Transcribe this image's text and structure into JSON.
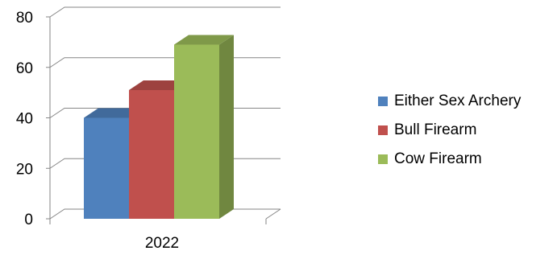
{
  "chart_data": {
    "type": "bar",
    "categories": [
      "2022"
    ],
    "series": [
      {
        "name": "Either Sex Archery",
        "values": [
          40
        ],
        "color": "#4F81BD"
      },
      {
        "name": "Bull Firearm",
        "values": [
          51
        ],
        "color": "#C0504D"
      },
      {
        "name": "Cow Firearm",
        "values": [
          69
        ],
        "color": "#9BBB59"
      }
    ],
    "ylim": [
      0,
      80
    ],
    "yticks": [
      "0",
      "20",
      "40",
      "60",
      "80"
    ],
    "grid": true,
    "legend": "right",
    "style": "3d-column"
  }
}
